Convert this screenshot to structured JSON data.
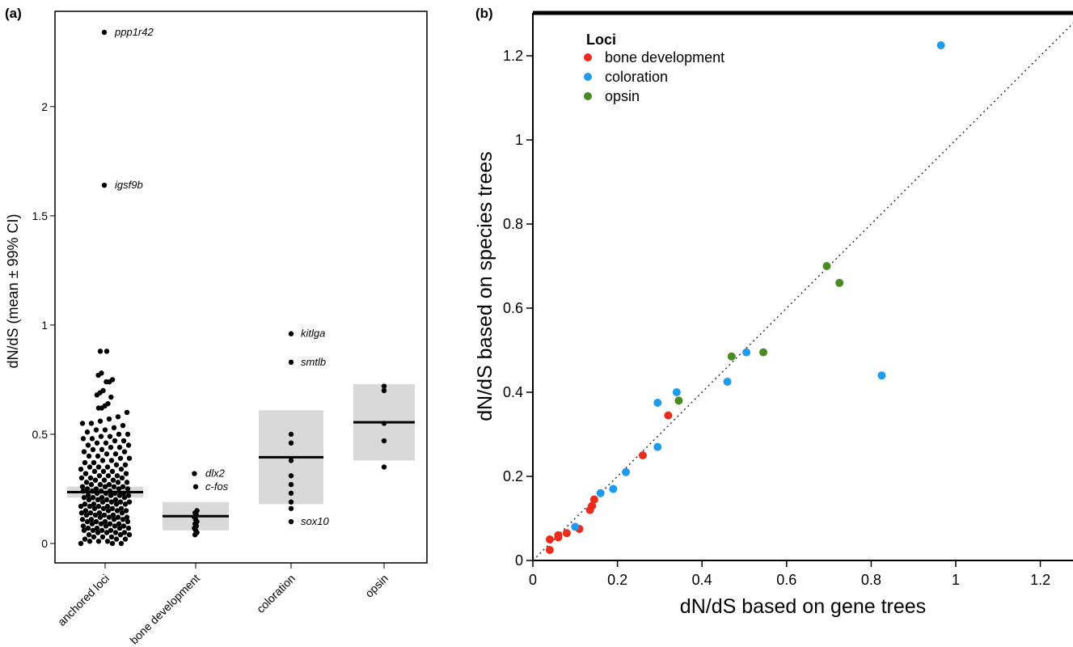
{
  "chart_data": [
    {
      "panel": "(a)",
      "type": "scatter",
      "ylabel": "dN/dS (mean ± 99% CI)",
      "xlabel": "",
      "ylim": [
        -0.02,
        2.42
      ],
      "yticks": [
        0,
        0.5,
        1,
        1.5,
        2
      ],
      "ytick_labels": [
        "0",
        "0.5",
        "1",
        "1.5",
        "2"
      ],
      "categories": [
        "anchored loci",
        "bone development",
        "coloration",
        "opsin"
      ],
      "series": [
        {
          "category": "anchored loci",
          "mean": 0.235,
          "ci": [
            0.21,
            0.26
          ],
          "points": [
            2.34,
            1.64,
            0.88,
            0.88,
            0.78,
            0.77,
            0.75,
            0.74,
            0.74,
            0.7,
            0.69,
            0.68,
            0.67,
            0.64,
            0.63,
            0.62,
            0.62,
            0.6,
            0.58,
            0.57,
            0.56,
            0.55,
            0.55,
            0.54,
            0.53,
            0.52,
            0.52,
            0.51,
            0.5,
            0.5,
            0.49,
            0.49,
            0.48,
            0.48,
            0.47,
            0.47,
            0.46,
            0.46,
            0.45,
            0.45,
            0.44,
            0.44,
            0.43,
            0.43,
            0.42,
            0.42,
            0.41,
            0.41,
            0.4,
            0.4,
            0.39,
            0.39,
            0.38,
            0.38,
            0.37,
            0.37,
            0.36,
            0.36,
            0.35,
            0.35,
            0.35,
            0.34,
            0.34,
            0.33,
            0.33,
            0.33,
            0.32,
            0.32,
            0.31,
            0.31,
            0.31,
            0.3,
            0.3,
            0.3,
            0.29,
            0.29,
            0.29,
            0.28,
            0.28,
            0.28,
            0.27,
            0.27,
            0.27,
            0.26,
            0.26,
            0.26,
            0.26,
            0.25,
            0.25,
            0.25,
            0.25,
            0.24,
            0.24,
            0.24,
            0.24,
            0.23,
            0.23,
            0.23,
            0.23,
            0.22,
            0.22,
            0.22,
            0.22,
            0.21,
            0.21,
            0.21,
            0.21,
            0.2,
            0.2,
            0.2,
            0.2,
            0.19,
            0.19,
            0.19,
            0.19,
            0.18,
            0.18,
            0.18,
            0.18,
            0.17,
            0.17,
            0.17,
            0.17,
            0.16,
            0.16,
            0.16,
            0.16,
            0.15,
            0.15,
            0.15,
            0.15,
            0.14,
            0.14,
            0.14,
            0.14,
            0.13,
            0.13,
            0.13,
            0.13,
            0.12,
            0.12,
            0.12,
            0.12,
            0.11,
            0.11,
            0.11,
            0.11,
            0.1,
            0.1,
            0.1,
            0.1,
            0.09,
            0.09,
            0.09,
            0.09,
            0.08,
            0.08,
            0.08,
            0.08,
            0.07,
            0.07,
            0.07,
            0.07,
            0.06,
            0.06,
            0.06,
            0.06,
            0.05,
            0.05,
            0.05,
            0.05,
            0.04,
            0.04,
            0.04,
            0.03,
            0.03,
            0.03,
            0.02,
            0.02,
            0.02,
            0.01,
            0.01,
            0.01,
            0.0,
            0.0,
            0.0
          ]
        },
        {
          "category": "bone development",
          "mean": 0.125,
          "ci": [
            0.06,
            0.19
          ],
          "points": [
            0.32,
            0.26,
            0.15,
            0.14,
            0.13,
            0.12,
            0.11,
            0.1,
            0.09,
            0.08,
            0.07,
            0.06,
            0.05,
            0.04
          ]
        },
        {
          "category": "coloration",
          "mean": 0.395,
          "ci": [
            0.18,
            0.61
          ],
          "points": [
            0.96,
            0.83,
            0.5,
            0.46,
            0.38,
            0.31,
            0.27,
            0.23,
            0.19,
            0.16,
            0.1
          ]
        },
        {
          "category": "opsin",
          "mean": 0.555,
          "ci": [
            0.38,
            0.73
          ],
          "points": [
            0.72,
            0.7,
            0.55,
            0.47,
            0.35
          ]
        }
      ],
      "annotations": [
        {
          "text": "ppp1r42",
          "category": "anchored loci",
          "y": 2.34
        },
        {
          "text": "igsf9b",
          "category": "anchored loci",
          "y": 1.64
        },
        {
          "text": "dlx2",
          "category": "bone development",
          "y": 0.32
        },
        {
          "text": "c-fos",
          "category": "bone development",
          "y": 0.26
        },
        {
          "text": "kitlga",
          "category": "coloration",
          "y": 0.96
        },
        {
          "text": "smtlb",
          "category": "coloration",
          "y": 0.83
        },
        {
          "text": "sox10",
          "category": "coloration",
          "y": 0.1
        }
      ]
    },
    {
      "panel": "(b)",
      "type": "scatter",
      "xlabel": "dN/dS based on gene trees",
      "ylabel": "dN/dS based on species trees",
      "xlim": [
        0,
        1.3
      ],
      "ylim": [
        0,
        1.3
      ],
      "xticks": [
        0,
        0.2,
        0.4,
        0.6,
        0.8,
        1,
        1.2
      ],
      "xtick_labels": [
        "0",
        "0.2",
        "0.4",
        "0.6",
        "0.8",
        "1",
        "1.2"
      ],
      "yticks": [
        0,
        0.2,
        0.4,
        0.6,
        0.8,
        1,
        1.2
      ],
      "ytick_labels": [
        "0",
        "0.2",
        "0.4",
        "0.6",
        "0.8",
        "1",
        "1.2"
      ],
      "reference_line": "y = x (dotted)",
      "legend": {
        "title": "Loci",
        "placement": "top-left"
      },
      "series": [
        {
          "name": "bone development",
          "color": "#ee2a1b",
          "points": [
            [
              0.04,
              0.025
            ],
            [
              0.04,
              0.05
            ],
            [
              0.06,
              0.055
            ],
            [
              0.06,
              0.06
            ],
            [
              0.08,
              0.065
            ],
            [
              0.11,
              0.075
            ],
            [
              0.135,
              0.12
            ],
            [
              0.14,
              0.13
            ],
            [
              0.145,
              0.145
            ],
            [
              0.26,
              0.25
            ],
            [
              0.32,
              0.345
            ]
          ]
        },
        {
          "name": "coloration",
          "color": "#1e9bef",
          "points": [
            [
              0.1,
              0.08
            ],
            [
              0.16,
              0.16
            ],
            [
              0.19,
              0.17
            ],
            [
              0.22,
              0.21
            ],
            [
              0.295,
              0.27
            ],
            [
              0.295,
              0.375
            ],
            [
              0.34,
              0.4
            ],
            [
              0.46,
              0.425
            ],
            [
              0.505,
              0.495
            ],
            [
              0.825,
              0.44
            ],
            [
              0.965,
              1.225
            ]
          ]
        },
        {
          "name": "opsin",
          "color": "#4a8a23",
          "points": [
            [
              0.345,
              0.38
            ],
            [
              0.47,
              0.485
            ],
            [
              0.545,
              0.495
            ],
            [
              0.695,
              0.7
            ],
            [
              0.725,
              0.66
            ]
          ]
        }
      ]
    }
  ]
}
